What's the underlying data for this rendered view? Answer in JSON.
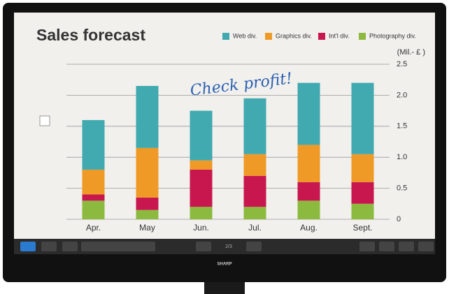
{
  "chart_data": {
    "type": "stacked-bar",
    "title": "Sales forecast",
    "y_label": "(Mil.- £ )",
    "annotation": "Check profit!",
    "categories": [
      "Apr.",
      "May",
      "Jun.",
      "Jul.",
      "Aug.",
      "Sept."
    ],
    "series": [
      {
        "name": "Photography div.",
        "color": "#8cba3f",
        "values": [
          0.3,
          0.15,
          0.2,
          0.2,
          0.3,
          0.25
        ]
      },
      {
        "name": "Int'l div.",
        "color": "#c8174f",
        "values": [
          0.1,
          0.2,
          0.6,
          0.5,
          0.3,
          0.35
        ]
      },
      {
        "name": "Graphics div.",
        "color": "#ef9a26",
        "values": [
          0.4,
          0.8,
          0.15,
          0.35,
          0.6,
          0.45
        ]
      },
      {
        "name": "Web div.",
        "color": "#41a9b0",
        "values": [
          0.8,
          1.0,
          0.8,
          0.9,
          1.0,
          1.15
        ]
      }
    ],
    "legend_order": [
      3,
      2,
      1,
      0
    ],
    "ylim": [
      0,
      2.5
    ],
    "yticks": [
      0,
      0.5,
      {
        "value": 1,
        "label": "1.0"
      },
      1.5,
      {
        "value": 2,
        "label": "2.0"
      },
      2.5
    ],
    "grid": true,
    "legend": "top-right"
  },
  "ui": {
    "page_indicator": "2/3",
    "brand": "SHARP"
  }
}
